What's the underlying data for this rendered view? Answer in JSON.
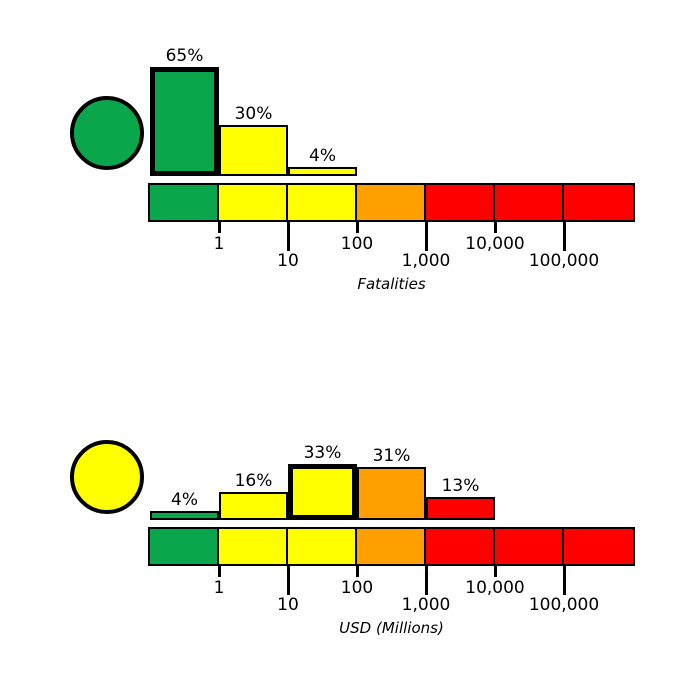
{
  "page": {
    "background": "#ffffff"
  },
  "colors": {
    "green": "#0AA64C",
    "yellow": "#FFFF00",
    "orange": "#FFA000",
    "red": "#FF0000",
    "line": "#000000"
  },
  "chart_data": [
    {
      "type": "bar",
      "xlabel": "Fatalities",
      "x_scale": "log",
      "x_tick_values": [
        1,
        10,
        100,
        1000,
        10000,
        100000
      ],
      "x_tick_labels": [
        "1",
        "10",
        "100",
        "1,000",
        "10,000",
        "100,000"
      ],
      "indicator_circle_color": "green",
      "colorbar_segments": [
        "green",
        "yellow",
        "yellow",
        "orange",
        "red",
        "red",
        "red"
      ],
      "bars": [
        {
          "segment": 0,
          "percent": 65,
          "label": "65%",
          "color": "green",
          "highlighted": true
        },
        {
          "segment": 1,
          "percent": 30,
          "label": "30%",
          "color": "yellow",
          "highlighted": false
        },
        {
          "segment": 2,
          "percent": 4,
          "label": "4%",
          "color": "yellow",
          "highlighted": false
        }
      ]
    },
    {
      "type": "bar",
      "xlabel": "USD (Millions)",
      "x_scale": "log",
      "x_tick_values": [
        1,
        10,
        100,
        1000,
        10000,
        100000
      ],
      "x_tick_labels": [
        "1",
        "10",
        "100",
        "1,000",
        "10,000",
        "100,000"
      ],
      "indicator_circle_color": "yellow",
      "colorbar_segments": [
        "green",
        "yellow",
        "yellow",
        "orange",
        "red",
        "red",
        "red"
      ],
      "bars": [
        {
          "segment": 0,
          "percent": 4,
          "label": "4%",
          "color": "green",
          "highlighted": false
        },
        {
          "segment": 1,
          "percent": 16,
          "label": "16%",
          "color": "yellow",
          "highlighted": false
        },
        {
          "segment": 2,
          "percent": 33,
          "label": "33%",
          "color": "yellow",
          "highlighted": true
        },
        {
          "segment": 3,
          "percent": 31,
          "label": "31%",
          "color": "orange",
          "highlighted": false
        },
        {
          "segment": 4,
          "percent": 13,
          "label": "13%",
          "color": "red",
          "highlighted": false
        }
      ]
    }
  ]
}
